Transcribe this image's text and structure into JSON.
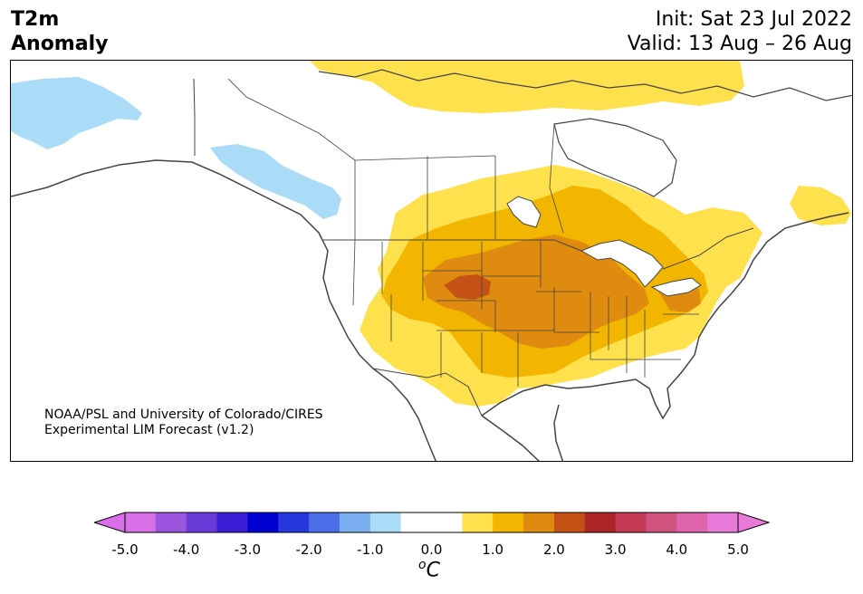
{
  "title": {
    "variable": "T2m",
    "subtitle": "Anomaly",
    "init": "Init: Sat 23 Jul 2022",
    "valid": "Valid: 13 Aug – 26 Aug"
  },
  "credit": {
    "line1": "NOAA/PSL and University of Colorado/CIRES",
    "line2": "Experimental LIM Forecast (v1.2)"
  },
  "colorbar": {
    "units_base": "C",
    "units_super": "o",
    "ticks": [
      "-5.0",
      "-4.0",
      "-3.0",
      "-2.0",
      "-1.0",
      "0.0",
      "1.0",
      "2.0",
      "3.0",
      "4.0",
      "5.0"
    ],
    "colors": [
      "#d86fe8",
      "#9b55de",
      "#6a3bd9",
      "#3b1fd6",
      "#0000d0",
      "#2438de",
      "#4a6fe8",
      "#7aaef0",
      "#aadcf8",
      "#ffffff",
      "#ffffff",
      "#ffe14d",
      "#f2b600",
      "#df8b10",
      "#c45216",
      "#ad2525",
      "#c53a55",
      "#d0537d",
      "#de65ad",
      "#ea7ada"
    ],
    "under_color": "#d86fe8",
    "over_color": "#ea7ada"
  },
  "map": {
    "region": "North America",
    "anomaly_colors": {
      "cool_light": "#aadcf8",
      "warm_1": "#ffe14d",
      "warm_2": "#f2b600",
      "warm_3": "#df8b10",
      "warm_4": "#c45216"
    }
  }
}
